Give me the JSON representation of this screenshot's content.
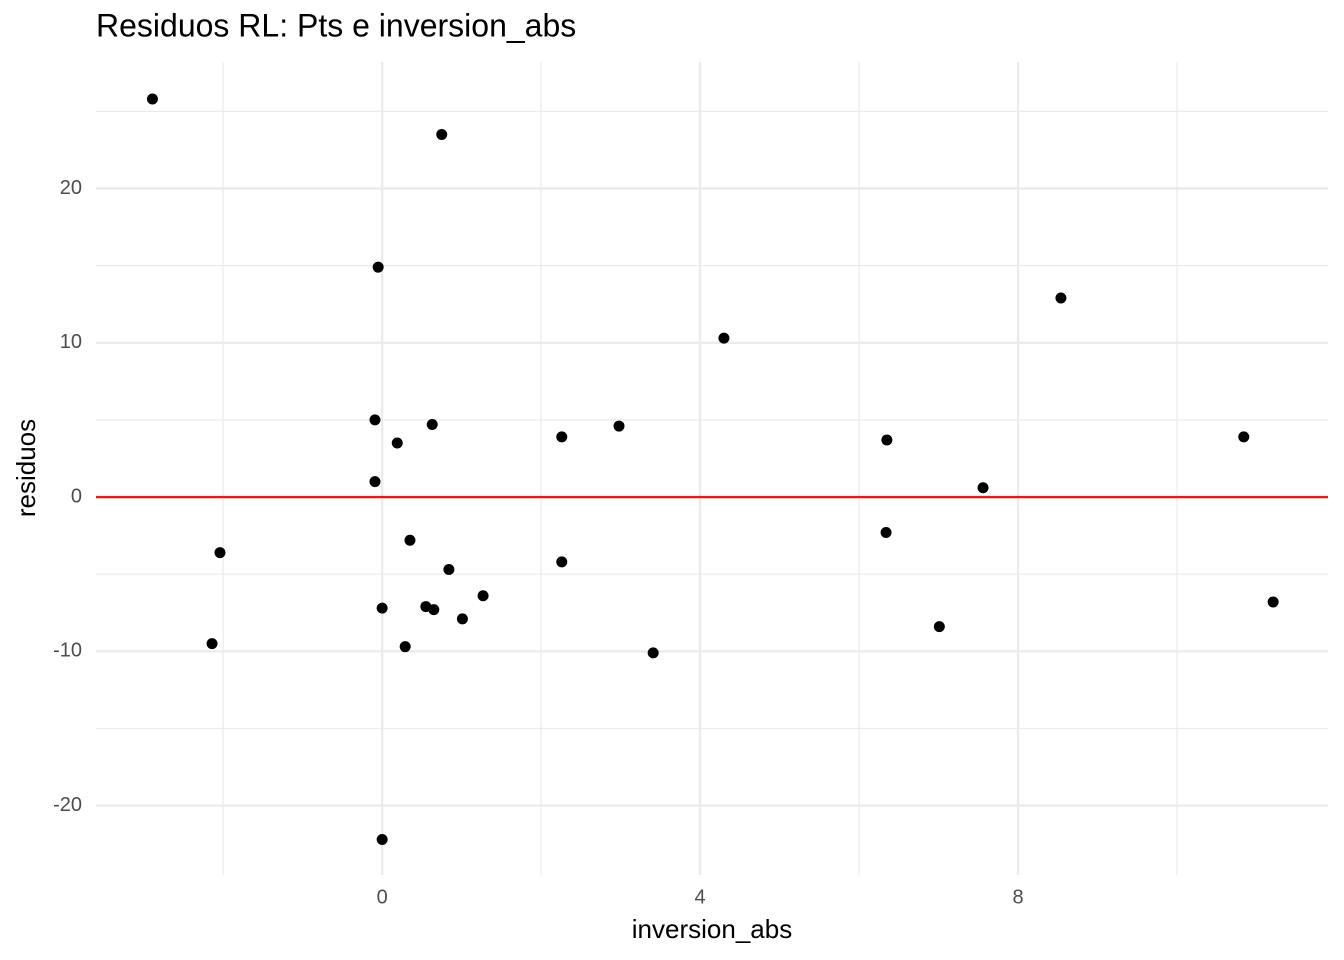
{
  "chart_data": {
    "type": "scatter",
    "title": "Residuos RL: Pts e inversion_abs",
    "x_label": "inversion_abs",
    "y_label": "residuos",
    "xlim": [
      -3.6,
      11.9
    ],
    "ylim": [
      -24.5,
      28.2
    ],
    "xticks": [
      0,
      4,
      8
    ],
    "yticks": [
      -20,
      -10,
      0,
      10,
      20
    ],
    "x_minor_ticks": [
      -2,
      2,
      6,
      10
    ],
    "y_minor_ticks": [
      -15,
      -5,
      5,
      15,
      25
    ],
    "grid": true,
    "color": "#000000",
    "hline": 0,
    "hline_color": "#e41a1c",
    "x": [
      -2.89,
      0.75,
      -0.05,
      8.54,
      4.3,
      -0.09,
      0.63,
      2.98,
      0.19,
      2.26,
      6.35,
      10.84,
      -0.09,
      7.56,
      -2.04,
      0.35,
      6.34,
      0.84,
      2.26,
      1.27,
      11.21,
      0.0,
      0.55,
      0.65,
      1.01,
      7.01,
      -2.14,
      0.29,
      3.41,
      0.0
    ],
    "values": [
      25.8,
      23.5,
      14.9,
      12.9,
      10.3,
      5.0,
      4.7,
      4.6,
      3.5,
      3.9,
      3.7,
      3.9,
      1.0,
      0.6,
      -3.6,
      -2.8,
      -2.3,
      -4.7,
      -4.2,
      -6.4,
      -6.8,
      -7.2,
      -7.1,
      -7.3,
      -7.9,
      -8.4,
      -9.5,
      -9.7,
      -10.1,
      -22.2
    ]
  }
}
